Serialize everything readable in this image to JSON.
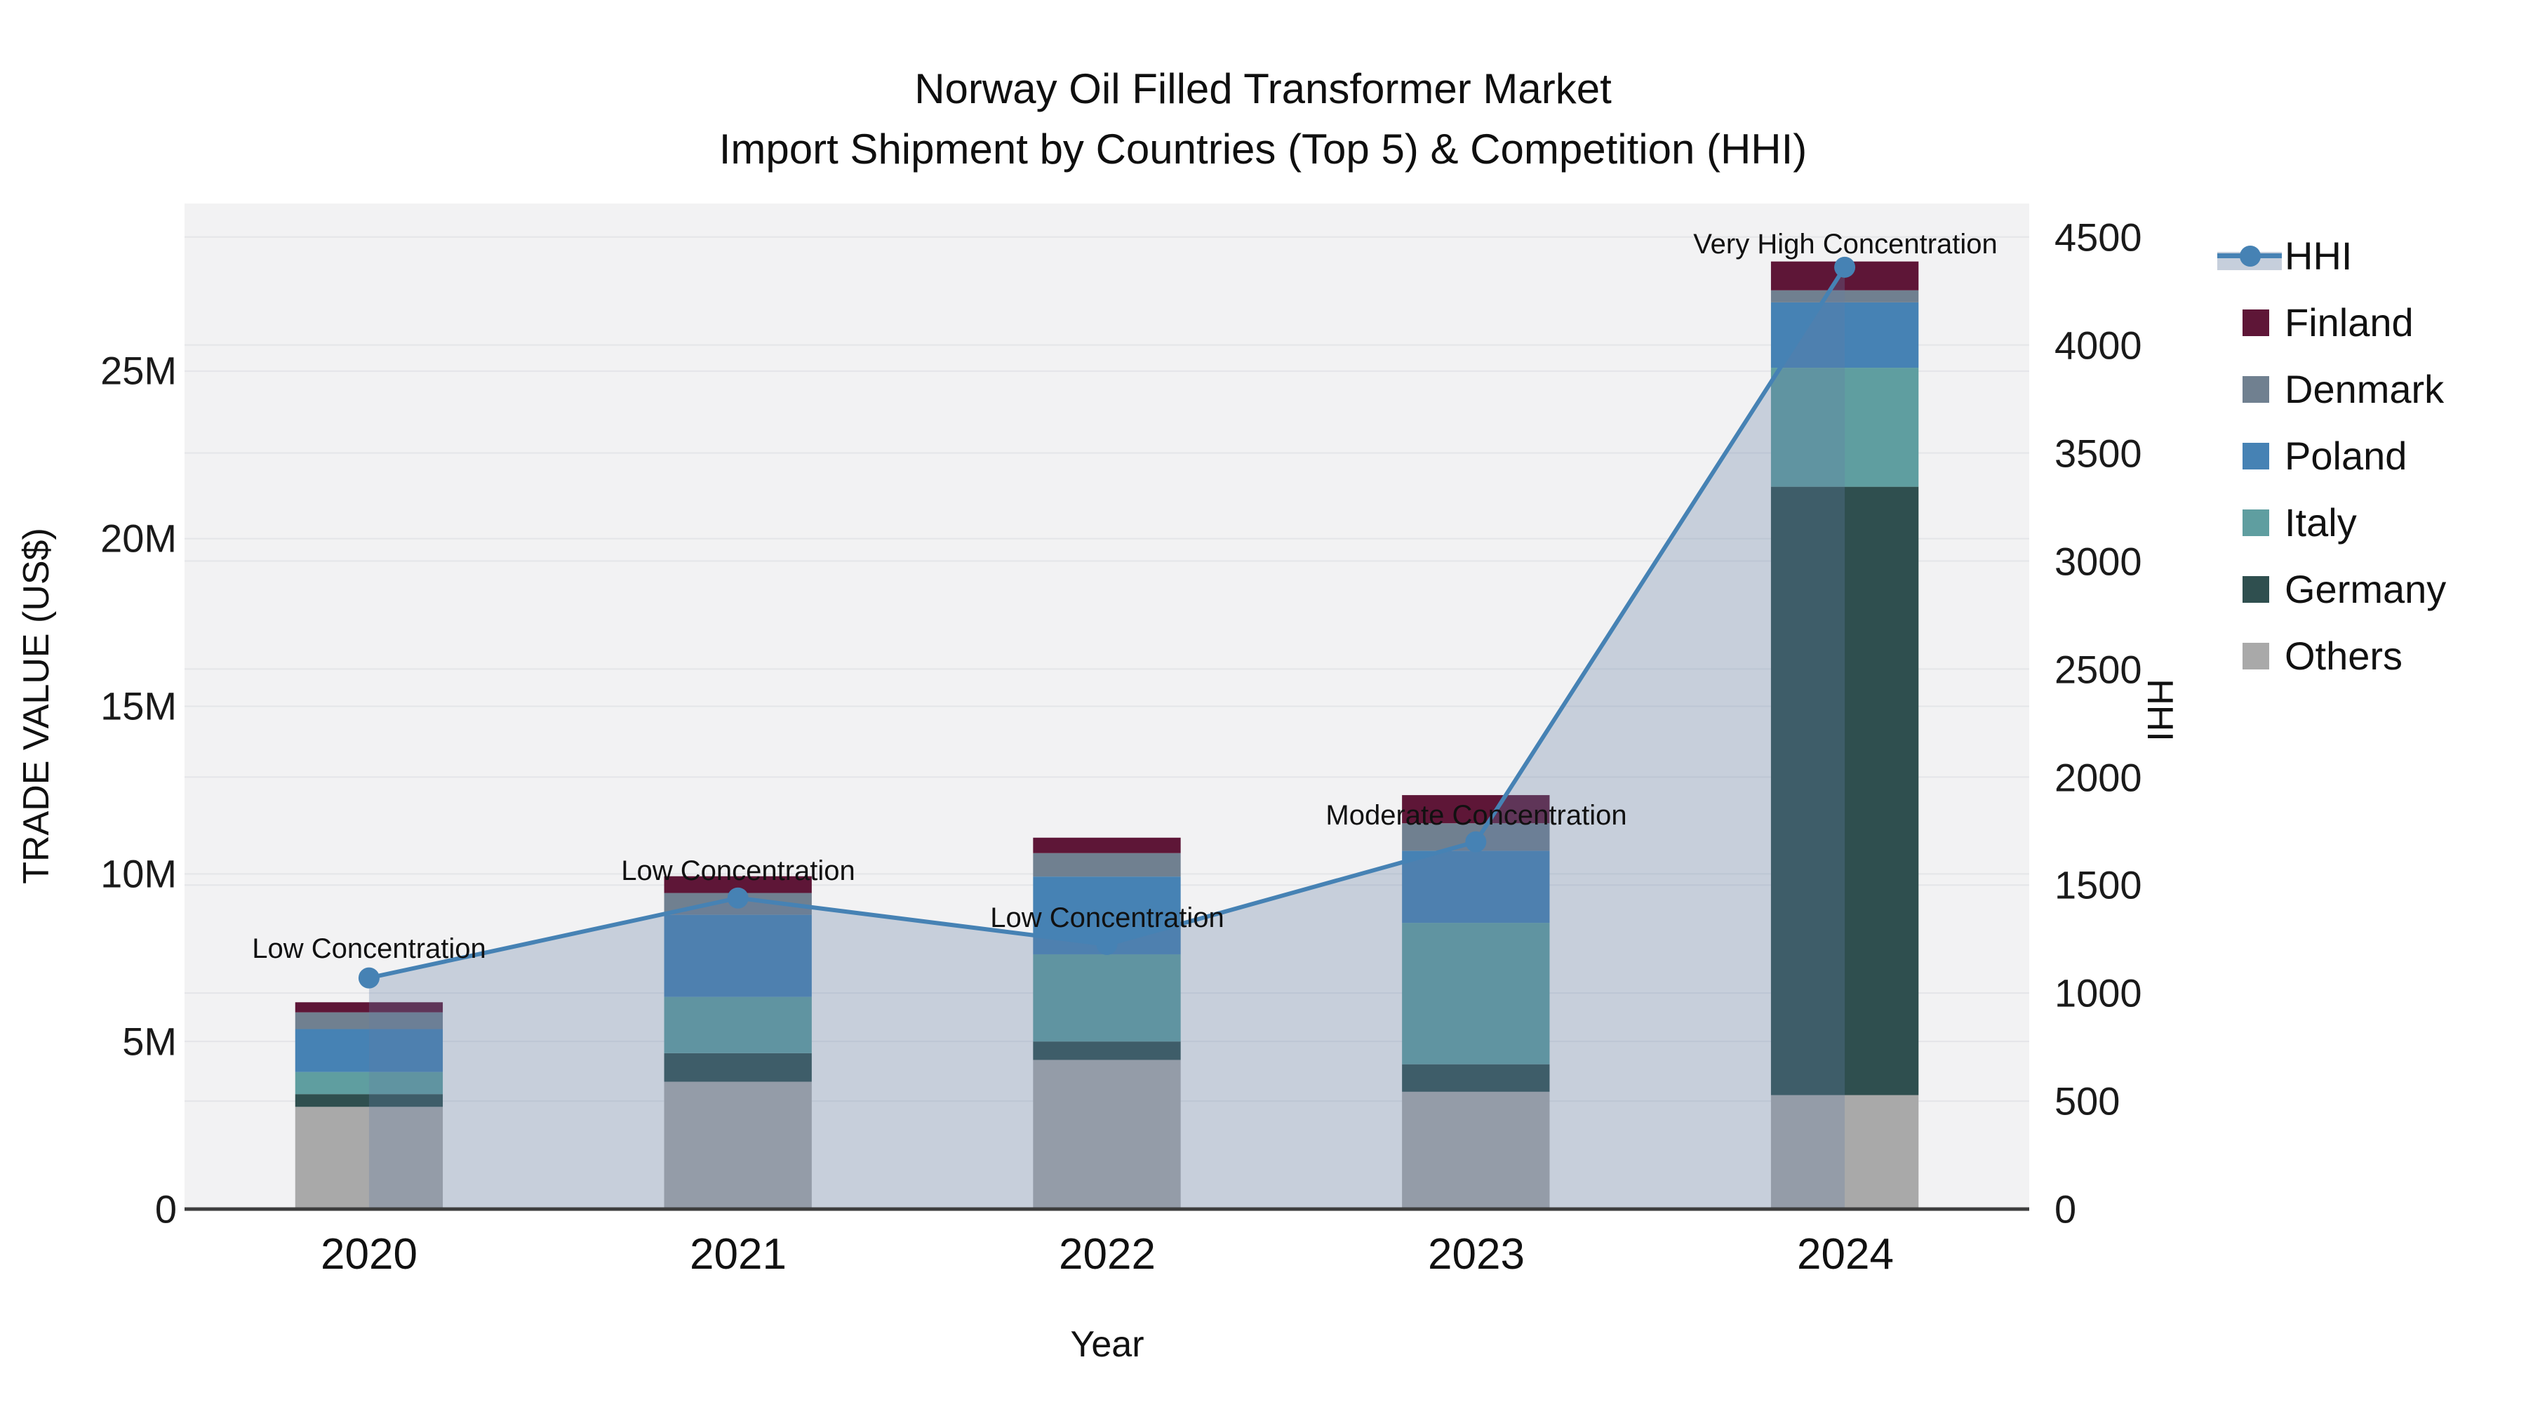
{
  "chart_data": {
    "type": "bar",
    "subtype": "stacked bars + HHI line with filled area (dual y-axis)",
    "title_line1": "Norway Oil Filled Transformer Market",
    "title_line2": "Import Shipment by Countries (Top 5) & Competition (HHI)",
    "categories": [
      "2020",
      "2021",
      "2022",
      "2023",
      "2024"
    ],
    "xlabel": "Year",
    "y_left": {
      "title": "TRADE VALUE (US$)",
      "unit": "million US$",
      "range": [
        0,
        30
      ],
      "tick_labels": [
        "0",
        "5M",
        "10M",
        "15M",
        "20M",
        "25M"
      ],
      "tick_values": [
        0,
        5,
        10,
        15,
        20,
        25
      ]
    },
    "y_right": {
      "title": "HHI",
      "range": [
        0,
        4655
      ],
      "tick_labels": [
        "0",
        "500",
        "1000",
        "1500",
        "2000",
        "2500",
        "3000",
        "3500",
        "4000",
        "4500"
      ],
      "tick_values": [
        0,
        500,
        1000,
        1500,
        2000,
        2500,
        3000,
        3500,
        4000,
        4500
      ]
    },
    "stack_bottom_to_top": [
      {
        "name": "Others",
        "color": "#a9a9a9",
        "values": [
          3.05,
          3.8,
          4.45,
          3.5,
          3.4
        ]
      },
      {
        "name": "Germany",
        "color": "#2f4f4f",
        "values": [
          0.38,
          0.85,
          0.55,
          0.82,
          18.15
        ]
      },
      {
        "name": "Italy",
        "color": "#5f9ea0",
        "values": [
          0.66,
          1.68,
          2.6,
          4.22,
          3.55
        ]
      },
      {
        "name": "Poland",
        "color": "#4682b4",
        "values": [
          1.28,
          2.45,
          2.32,
          2.15,
          1.95
        ]
      },
      {
        "name": "Denmark",
        "color": "#708090",
        "values": [
          0.5,
          0.65,
          0.7,
          0.82,
          0.36
        ]
      },
      {
        "name": "Finland",
        "color": "#5e1637",
        "values": [
          0.3,
          0.5,
          0.46,
          0.84,
          0.86
        ]
      }
    ],
    "totals_million": [
      6.17,
      9.93,
      11.08,
      12.35,
      28.27
    ],
    "hhi": {
      "name": "HHI",
      "color": "#4682b4",
      "area_color": "rgba(100,125,165,0.30)",
      "values": [
        1070,
        1440,
        1225,
        1700,
        4360
      ]
    },
    "annotations": [
      {
        "year": "2020",
        "text": "Low Concentration"
      },
      {
        "year": "2021",
        "text": "Low Concentration"
      },
      {
        "year": "2022",
        "text": "Low Concentration"
      },
      {
        "year": "2023",
        "text": "Moderate Concentration"
      },
      {
        "year": "2024",
        "text": "Very High Concentration"
      }
    ],
    "legend_position": "right",
    "grid": true,
    "plot_bg": "#f2f2f3",
    "grid_color": "#e4e5e8",
    "axis_line_color": "#3d3d3d"
  },
  "legend": {
    "items": [
      {
        "label": "HHI"
      },
      {
        "label": "Finland"
      },
      {
        "label": "Denmark"
      },
      {
        "label": "Poland"
      },
      {
        "label": "Italy"
      },
      {
        "label": "Germany"
      },
      {
        "label": "Others"
      }
    ]
  }
}
